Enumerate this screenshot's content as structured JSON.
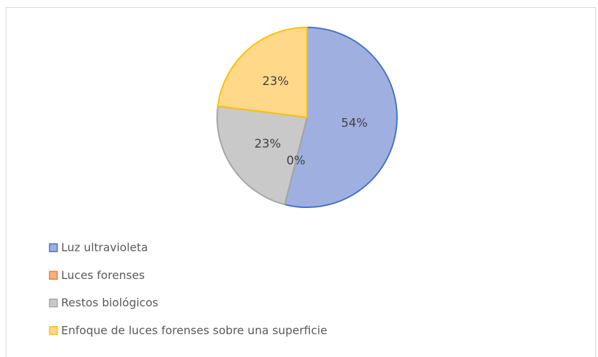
{
  "chart_data": {
    "type": "pie",
    "categories": [
      "Luz ultravioleta",
      "Luces forenses",
      "Restos biológicos",
      "Enfoque de luces forenses sobre una superficie"
    ],
    "values": [
      54,
      0,
      23,
      23
    ],
    "value_labels": [
      "54%",
      "0%",
      "23%",
      "23%"
    ],
    "colors": [
      "#4472c4",
      "#ed7d31",
      "#a5a5a5",
      "#ffc000"
    ],
    "fills": [
      "#9fb0e0",
      "#f4b183",
      "#c9c9c9",
      "#ffd88a"
    ],
    "legend": "bottom-left"
  }
}
